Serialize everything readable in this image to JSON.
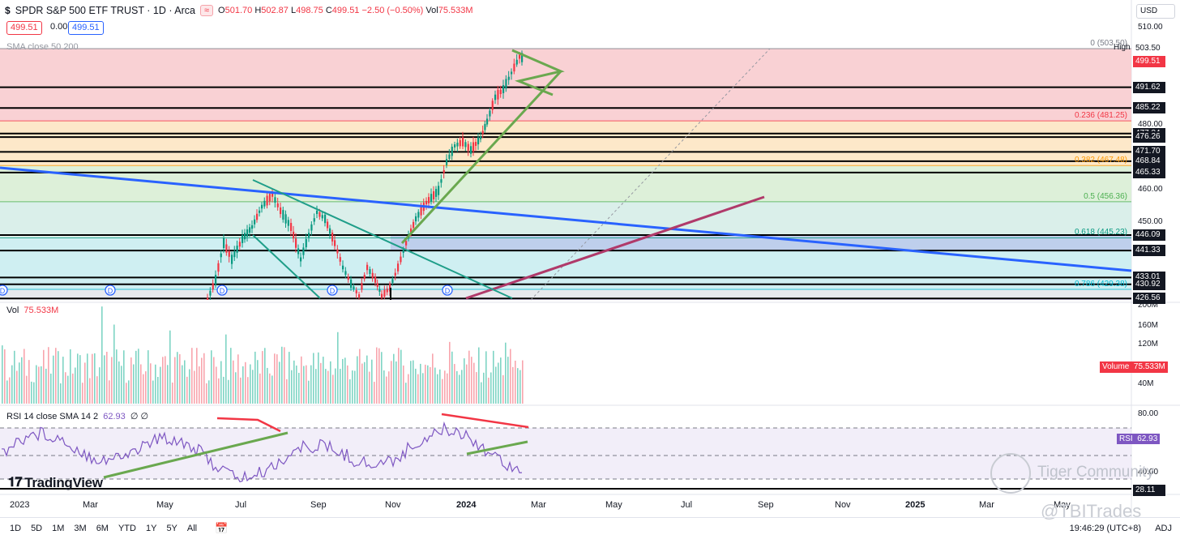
{
  "header": {
    "symbol_icon": "dollar-icon",
    "title": "SPDR S&P 500 ETF TRUST · 1D · Arca",
    "flag_icon": "≈",
    "ohlc": {
      "o_label": "O",
      "o": "501.70",
      "h_label": "H",
      "h": "502.87",
      "l_label": "L",
      "l": "498.75",
      "c_label": "C",
      "c": "499.51",
      "chg": "−2.50 (−0.50%)",
      "vol_label": "Vol",
      "vol": "75.533M"
    },
    "sell": "499.51",
    "spread": "0.00",
    "buy": "499.51",
    "sma_label": "SMA close 50 200",
    "currency": "USD"
  },
  "price_axis": {
    "ticks": [
      {
        "label": "510.00",
        "price": 510
      },
      {
        "label": "480.00",
        "price": 480
      },
      {
        "label": "460.00",
        "price": 460
      },
      {
        "label": "450.00",
        "price": 450
      }
    ],
    "tags": [
      {
        "label": "503.50",
        "price": 503.5,
        "style": "plain"
      },
      {
        "label": "499.51",
        "price": 499.51,
        "style": "red"
      },
      {
        "label": "491.62",
        "price": 491.62,
        "style": "dark"
      },
      {
        "label": "485.22",
        "price": 485.22,
        "style": "dark"
      },
      {
        "label": "477.34",
        "price": 477.34,
        "style": "dark"
      },
      {
        "label": "476.26",
        "price": 476.26,
        "style": "dark"
      },
      {
        "label": "471.70",
        "price": 471.7,
        "style": "dark"
      },
      {
        "label": "468.84",
        "price": 468.84,
        "style": "dark"
      },
      {
        "label": "465.33",
        "price": 465.33,
        "style": "dark"
      },
      {
        "label": "446.09",
        "price": 446.09,
        "style": "dark"
      },
      {
        "label": "441.33",
        "price": 441.33,
        "style": "dark"
      },
      {
        "label": "433.01",
        "price": 433.01,
        "style": "dark"
      },
      {
        "label": "430.92",
        "price": 430.92,
        "style": "dark"
      },
      {
        "label": "426.56",
        "price": 426.56,
        "style": "dark"
      }
    ],
    "high_label": "High"
  },
  "fib_levels": [
    {
      "label": "0 (503.50)",
      "price": 503.5,
      "color": "#787b86"
    },
    {
      "label": "0.236 (481.25)",
      "price": 481.25,
      "color": "#f23645"
    },
    {
      "label": "0.382 (467.48)",
      "price": 467.48,
      "color": "#ff9800"
    },
    {
      "label": "0.5 (456.36)",
      "price": 456.36,
      "color": "#4caf50"
    },
    {
      "label": "0.618 (445.23)",
      "price": 445.23,
      "color": "#089981"
    },
    {
      "label": "0.786 (429.38)",
      "price": 429.38,
      "color": "#00bcd4"
    }
  ],
  "volume": {
    "label": "Vol",
    "value": "75.533M",
    "tag_label": "Volume",
    "axis": [
      "200M",
      "160M",
      "120M",
      "80M",
      "40M"
    ]
  },
  "rsi": {
    "label": "RSI 14 close SMA 14 2",
    "value": "62.93",
    "extra": "∅ ∅",
    "axis": [
      "80.00",
      "40.00"
    ],
    "tag_label": "RSI",
    "low_tag": "28.11"
  },
  "time_axis": [
    "2023",
    "Mar",
    "May",
    "Jul",
    "Sep",
    "Nov",
    "2024",
    "Mar",
    "May",
    "Jul",
    "Sep",
    "Nov",
    "2025",
    "Mar",
    "May"
  ],
  "dividend_marker": "D",
  "brand": {
    "logo": "TradingView",
    "watermark": "Tiger Community",
    "handle": "@TBITrades"
  },
  "bottom": {
    "ranges": [
      "1D",
      "5D",
      "1M",
      "3M",
      "6M",
      "YTD",
      "1Y",
      "5Y",
      "All"
    ],
    "calendar_icon": "calendar-icon",
    "clock": "19:46:29 (UTC+8)",
    "adj": "ADJ"
  },
  "colors": {
    "up": "#089981",
    "down": "#f23645",
    "blue_line": "#2962ff",
    "trend_green": "#6aa84f",
    "trend_magenta": "#b03a6a",
    "rsi": "#7e57c2"
  }
}
